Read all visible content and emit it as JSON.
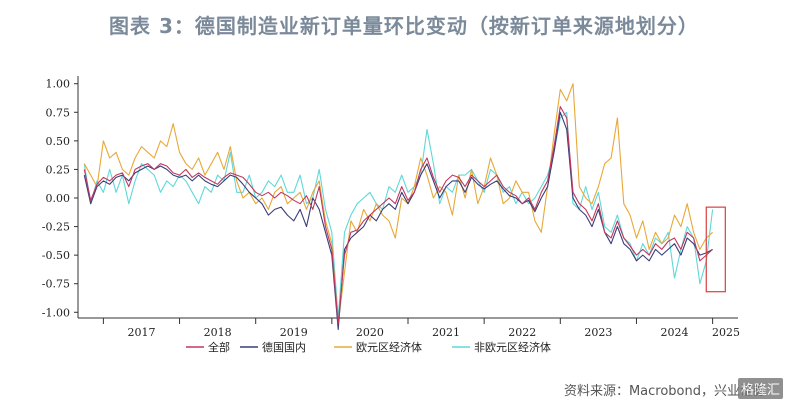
{
  "title": "图表 3：德国制造业新订单量环比变动（按新订单来源地划分）",
  "source": "资料来源：Macrobond，兴业证券",
  "watermark": "格隆汇",
  "chart_data": {
    "type": "line",
    "ylim": [
      -1.05,
      1.05
    ],
    "yticks": [
      1.0,
      0.75,
      0.5,
      0.25,
      0.0,
      -0.25,
      -0.5,
      -0.75,
      -1.0
    ],
    "ytick_labels": [
      "1.00",
      "0.75",
      "0.50",
      "0.25",
      "0.00",
      "-0.25",
      "-0.50",
      "-0.75",
      "-1.00"
    ],
    "x_start": "2016-09",
    "x_end": "2025-05",
    "year_labels": [
      "2017",
      "2018",
      "2019",
      "2020",
      "2021",
      "2022",
      "2023",
      "2024",
      "2025"
    ],
    "colors": {
      "total": "#c0385f",
      "domestic": "#3a3d78",
      "ea": "#e8a838",
      "non_ea": "#5fd8d8",
      "box": "#d94040"
    },
    "highlight": {
      "x_from": "2024-12",
      "x_to": "2025-03",
      "y_from": -0.82,
      "y_to": -0.08
    },
    "series": [
      {
        "key": "total",
        "name": "全部",
        "start": "2016-10",
        "values": [
          0.25,
          -0.02,
          0.12,
          0.18,
          0.15,
          0.2,
          0.22,
          0.1,
          0.25,
          0.28,
          0.3,
          0.25,
          0.3,
          0.28,
          0.22,
          0.2,
          0.25,
          0.18,
          0.22,
          0.18,
          0.15,
          0.12,
          0.18,
          0.22,
          0.2,
          0.18,
          0.12,
          0.05,
          0.02,
          0.05,
          0.0,
          0.05,
          0.02,
          -0.02,
          -0.05,
          0.02,
          -0.1,
          0.1,
          -0.25,
          -0.45,
          -1.1,
          -0.5,
          -0.3,
          -0.28,
          -0.2,
          -0.15,
          -0.1,
          -0.05,
          0.0,
          -0.05,
          0.1,
          -0.02,
          0.05,
          0.25,
          0.35,
          0.18,
          0.05,
          0.15,
          0.2,
          0.18,
          0.1,
          0.2,
          0.15,
          0.1,
          0.15,
          0.2,
          0.1,
          0.05,
          0.02,
          -0.05,
          0.0,
          -0.1,
          0.05,
          0.15,
          0.45,
          0.8,
          0.7,
          0.05,
          -0.05,
          -0.1,
          -0.2,
          -0.05,
          -0.3,
          -0.35,
          -0.2,
          -0.35,
          -0.42,
          -0.5,
          -0.45,
          -0.5,
          -0.4,
          -0.45,
          -0.38,
          -0.35,
          -0.45,
          -0.3,
          -0.35,
          -0.55,
          -0.5,
          -0.45
        ]
      },
      {
        "key": "domestic",
        "name": "德国国内",
        "start": "2016-10",
        "values": [
          0.2,
          -0.05,
          0.1,
          0.15,
          0.12,
          0.18,
          0.2,
          0.15,
          0.22,
          0.25,
          0.28,
          0.25,
          0.28,
          0.25,
          0.2,
          0.18,
          0.2,
          0.15,
          0.2,
          0.15,
          0.12,
          0.1,
          0.15,
          0.2,
          0.18,
          0.12,
          0.05,
          0.0,
          -0.05,
          -0.15,
          -0.1,
          -0.08,
          -0.15,
          -0.2,
          -0.1,
          -0.25,
          0.0,
          -0.1,
          -0.3,
          -0.5,
          -1.15,
          -0.45,
          -0.35,
          -0.3,
          -0.25,
          -0.15,
          -0.2,
          -0.1,
          -0.05,
          -0.1,
          0.05,
          -0.05,
          0.05,
          0.2,
          0.3,
          0.15,
          0.0,
          0.1,
          0.15,
          0.15,
          0.05,
          0.18,
          0.12,
          0.08,
          0.12,
          0.15,
          0.08,
          0.02,
          0.0,
          -0.05,
          -0.02,
          -0.12,
          0.0,
          0.1,
          0.4,
          0.75,
          0.6,
          0.0,
          -0.1,
          -0.15,
          -0.25,
          -0.1,
          -0.3,
          -0.4,
          -0.25,
          -0.4,
          -0.45,
          -0.55,
          -0.5,
          -0.55,
          -0.45,
          -0.5,
          -0.45,
          -0.4,
          -0.5,
          -0.35,
          -0.4,
          -0.5,
          -0.48,
          -0.45
        ]
      },
      {
        "key": "ea",
        "name": "欧元区经济体",
        "start": "2016-10",
        "values": [
          0.3,
          0.2,
          0.1,
          0.5,
          0.35,
          0.4,
          0.25,
          0.2,
          0.35,
          0.45,
          0.4,
          0.35,
          0.5,
          0.45,
          0.65,
          0.4,
          0.3,
          0.25,
          0.35,
          0.2,
          0.3,
          0.4,
          0.25,
          0.45,
          0.15,
          0.0,
          0.05,
          -0.05,
          0.0,
          -0.1,
          0.05,
          0.1,
          -0.05,
          0.0,
          0.05,
          -0.1,
          0.05,
          0.15,
          -0.2,
          -0.4,
          -1.1,
          -0.65,
          -0.2,
          -0.3,
          -0.1,
          -0.2,
          -0.05,
          -0.15,
          -0.2,
          -0.35,
          0.0,
          -0.05,
          0.1,
          0.35,
          0.2,
          0.0,
          0.1,
          0.05,
          -0.15,
          0.2,
          0.0,
          0.25,
          -0.05,
          0.1,
          0.35,
          0.2,
          -0.05,
          0.0,
          0.15,
          0.05,
          0.05,
          -0.2,
          -0.3,
          0.1,
          0.55,
          0.95,
          0.85,
          1.0,
          0.1,
          0.0,
          -0.05,
          0.1,
          0.3,
          0.35,
          0.7,
          -0.05,
          -0.15,
          -0.35,
          -0.2,
          -0.45,
          -0.3,
          -0.4,
          -0.35,
          -0.15,
          -0.25,
          -0.05,
          -0.3,
          -0.45,
          -0.35,
          -0.3
        ]
      },
      {
        "key": "non_ea",
        "name": "非欧元区经济体",
        "start": "2016-10",
        "values": [
          0.3,
          -0.05,
          0.15,
          0.05,
          0.25,
          0.05,
          0.2,
          -0.05,
          0.15,
          0.3,
          0.25,
          0.2,
          0.05,
          0.15,
          0.1,
          0.2,
          0.15,
          0.05,
          -0.05,
          0.1,
          0.05,
          0.2,
          0.15,
          0.4,
          0.05,
          0.05,
          0.2,
          0.0,
          0.05,
          0.15,
          0.1,
          0.2,
          0.05,
          0.05,
          0.2,
          -0.05,
          0.0,
          0.25,
          -0.1,
          -0.3,
          -1.05,
          -0.3,
          -0.15,
          -0.05,
          0.0,
          0.05,
          -0.05,
          -0.1,
          0.1,
          0.05,
          0.2,
          0.05,
          0.1,
          0.2,
          0.6,
          0.3,
          -0.05,
          0.1,
          0.05,
          0.2,
          0.2,
          0.25,
          0.15,
          0.05,
          0.25,
          0.2,
          0.05,
          0.1,
          -0.05,
          0.05,
          -0.05,
          0.0,
          0.1,
          0.2,
          0.4,
          0.7,
          0.75,
          -0.05,
          -0.1,
          0.1,
          -0.1,
          0.05,
          -0.25,
          -0.3,
          -0.15,
          -0.35,
          -0.4,
          -0.55,
          -0.4,
          -0.5,
          -0.35,
          -0.4,
          -0.3,
          -0.7,
          -0.45,
          -0.25,
          -0.35,
          -0.75,
          -0.55,
          -0.1
        ]
      }
    ]
  }
}
